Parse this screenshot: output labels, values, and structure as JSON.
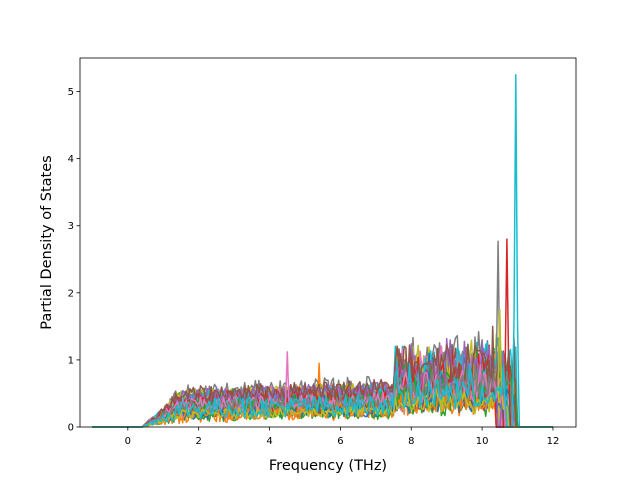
{
  "chart_data": {
    "type": "line",
    "title": "",
    "xlabel": "Frequency (THz)",
    "ylabel": "Partial Density of States",
    "xlim": [
      -1.35,
      12.65
    ],
    "ylim": [
      0,
      5.5
    ],
    "xticks": [
      0,
      2,
      4,
      6,
      8,
      10,
      12
    ],
    "yticks": [
      0,
      1,
      2,
      3,
      4,
      5
    ],
    "grid": false,
    "legend": "none",
    "colors": [
      "#1f77b4",
      "#ff7f0e",
      "#2ca02c",
      "#d62728",
      "#9467bd",
      "#8c564b",
      "#e377c2",
      "#7f7f7f",
      "#bcbd22",
      "#17becf"
    ],
    "series": [
      {
        "color": "#1f77b4",
        "peak": [
          8.5,
          1.1
        ]
      },
      {
        "color": "#ff7f0e",
        "peak": [
          5.4,
          0.95
        ]
      },
      {
        "color": "#2ca02c",
        "peak": [
          9.85,
          1.18
        ]
      },
      {
        "color": "#d62728",
        "peak": [
          10.7,
          2.8
        ]
      },
      {
        "color": "#9467bd",
        "peak": [
          10.6,
          1.1
        ]
      },
      {
        "color": "#8c564b",
        "peak": [
          10.3,
          1.5
        ]
      },
      {
        "color": "#e377c2",
        "peak": [
          4.5,
          1.12
        ]
      },
      {
        "color": "#7f7f7f",
        "peak": [
          10.45,
          2.77
        ]
      },
      {
        "color": "#bcbd22",
        "peak": [
          10.5,
          1.75
        ]
      },
      {
        "color": "#17becf",
        "peak": [
          10.95,
          5.25
        ]
      }
    ]
  }
}
